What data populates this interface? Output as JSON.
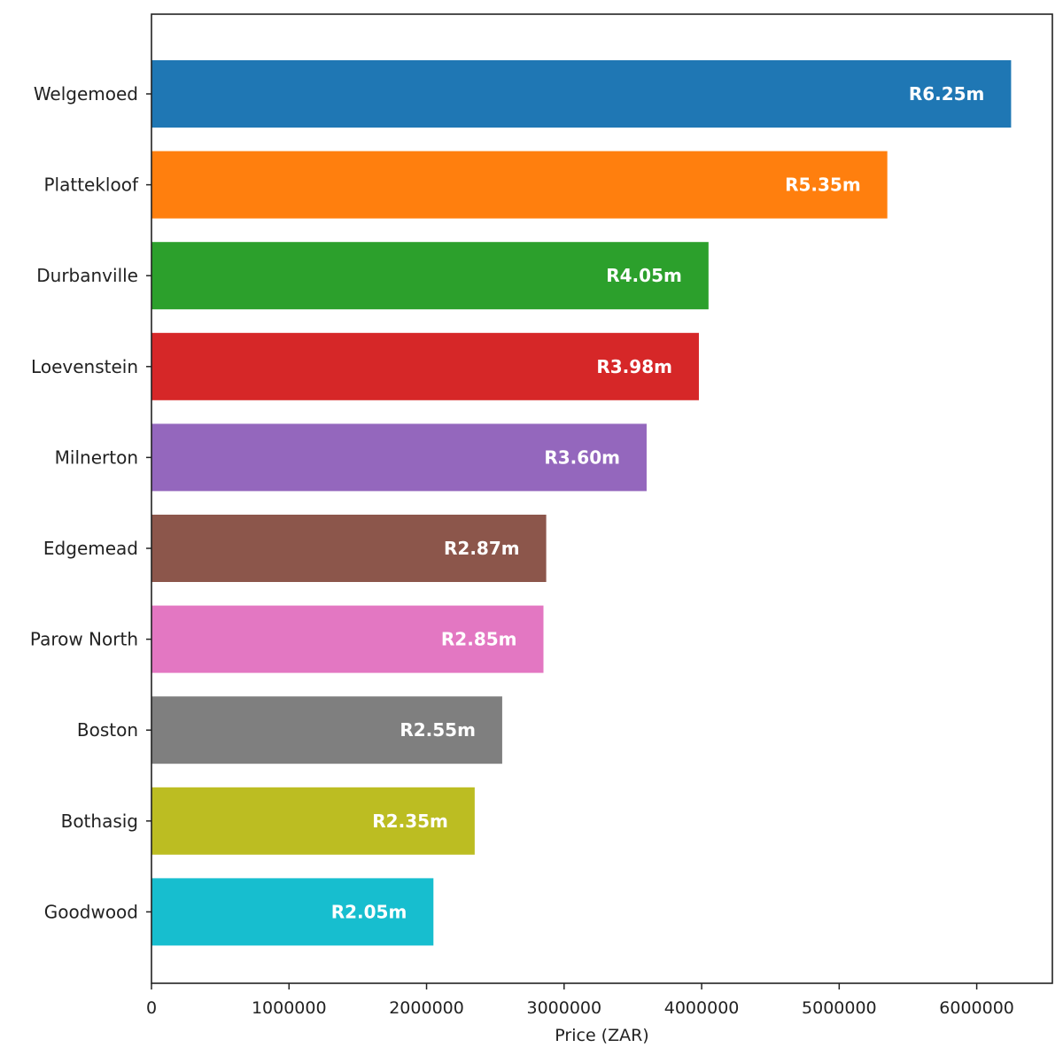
{
  "chart_data": {
    "type": "bar",
    "orientation": "horizontal",
    "title": "",
    "xlabel": "Price (ZAR)",
    "ylabel": "",
    "xlim": [
      0,
      6550000
    ],
    "xticks": [
      0,
      1000000,
      2000000,
      3000000,
      4000000,
      5000000,
      6000000
    ],
    "xtick_labels": [
      "0",
      "1000000",
      "2000000",
      "3000000",
      "4000000",
      "5000000",
      "6000000"
    ],
    "grid": false,
    "legend": "none",
    "categories": [
      "Welgemoed",
      "Plattekloof",
      "Durbanville",
      "Loevenstein",
      "Milnerton",
      "Edgemead",
      "Parow North",
      "Boston",
      "Bothasig",
      "Goodwood"
    ],
    "values": [
      6250000,
      5350000,
      4050000,
      3980000,
      3600000,
      2870000,
      2850000,
      2550000,
      2350000,
      2050000
    ],
    "data_labels": [
      "R6.25m",
      "R5.35m",
      "R4.05m",
      "R3.98m",
      "R3.60m",
      "R2.87m",
      "R2.85m",
      "R2.55m",
      "R2.35m",
      "R2.05m"
    ],
    "colors": [
      "#1f77b4",
      "#ff7f0e",
      "#2ca02c",
      "#d62728",
      "#9467bd",
      "#8c564b",
      "#e377c2",
      "#7f7f7f",
      "#bcbd22",
      "#17becf"
    ]
  }
}
